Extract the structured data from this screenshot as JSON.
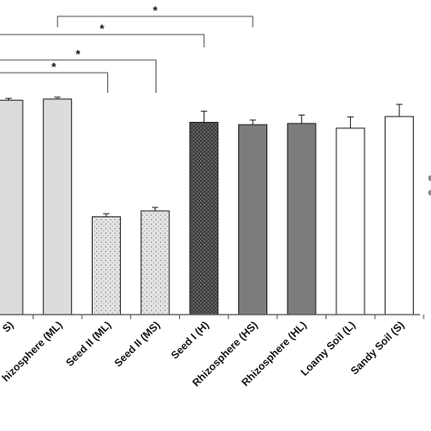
{
  "chart_data": {
    "type": "bar",
    "categories": [
      "S)",
      "hizosphere (ML)",
      "Seed II (ML)",
      "Seed II (MS)",
      "Seed I (H)",
      "Rhizosphere (HS)",
      "Rhizosphere (HL)",
      "Loamy Soil (L)",
      "Sandy Soil (S)"
    ],
    "values": [
      92,
      92.5,
      42,
      44.5,
      82.5,
      81.5,
      82,
      80,
      85
    ],
    "errors": [
      0.8,
      0.8,
      1.3,
      1.5,
      4.8,
      2.0,
      3.6,
      4.8,
      5.2
    ],
    "fills": [
      "light-gray",
      "light-gray",
      "dotted",
      "dotted",
      "dark-dense",
      "dark-gray",
      "dark-gray",
      "white",
      "white"
    ],
    "ylim": [
      0,
      135
    ],
    "significance": [
      {
        "from": 1,
        "to": 5,
        "label": "*"
      },
      {
        "from": 0,
        "to": 4,
        "label": "*"
      },
      {
        "from": 0,
        "to": 3,
        "label": "*"
      },
      {
        "from": 0,
        "to": 2,
        "label": "*"
      }
    ],
    "colors": {
      "light-gray": "#dcdcdc",
      "dark-gray": "#7c7c7c",
      "white": "#ffffff",
      "stroke": "#222222",
      "axis": "#555555"
    },
    "title": "",
    "xlabel": "",
    "ylabel": ""
  }
}
